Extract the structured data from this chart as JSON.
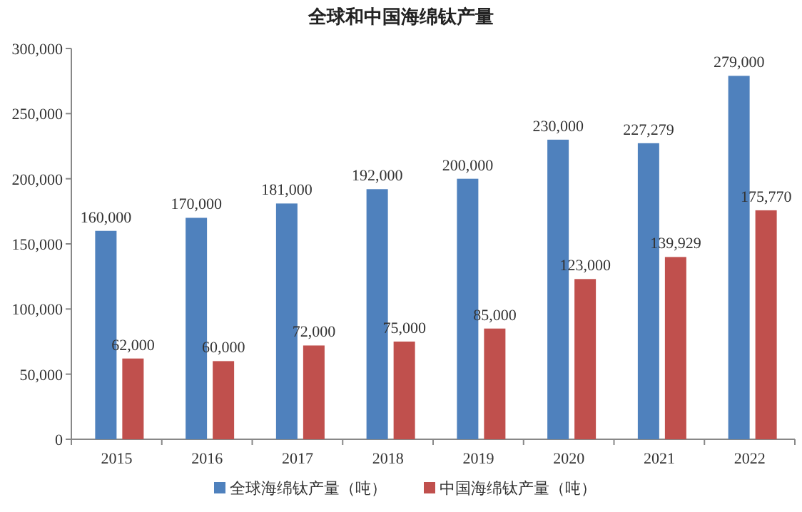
{
  "chart_data": {
    "type": "bar",
    "title": "全球和中国海绵钛产量",
    "categories": [
      "2015",
      "2016",
      "2017",
      "2018",
      "2019",
      "2020",
      "2021",
      "2022"
    ],
    "series": [
      {
        "name": "全球海绵钛产量（吨）",
        "color": "#4f81bd",
        "values": [
          160000,
          170000,
          181000,
          192000,
          200000,
          230000,
          227279,
          279000
        ],
        "value_labels": [
          "160,000",
          "170,000",
          "181,000",
          "192,000",
          "200,000",
          "230,000",
          "227,279",
          "279,000"
        ]
      },
      {
        "name": "中国海绵钛产量（吨）",
        "color": "#c0504d",
        "values": [
          62000,
          60000,
          72000,
          75000,
          85000,
          123000,
          139929,
          175770
        ],
        "value_labels": [
          "62,000",
          "60,000",
          "72,000",
          "75,000",
          "85,000",
          "123,000",
          "139,929",
          "175,770"
        ]
      }
    ],
    "ylim": [
      0,
      300000
    ],
    "yticks": [
      {
        "value": 0,
        "label": "0"
      },
      {
        "value": 50000,
        "label": "50,000"
      },
      {
        "value": 100000,
        "label": "100,000"
      },
      {
        "value": 150000,
        "label": "150,000"
      },
      {
        "value": 200000,
        "label": "200,000"
      },
      {
        "value": 250000,
        "label": "250,000"
      },
      {
        "value": 300000,
        "label": "300,000"
      }
    ],
    "legend": "bottom"
  }
}
